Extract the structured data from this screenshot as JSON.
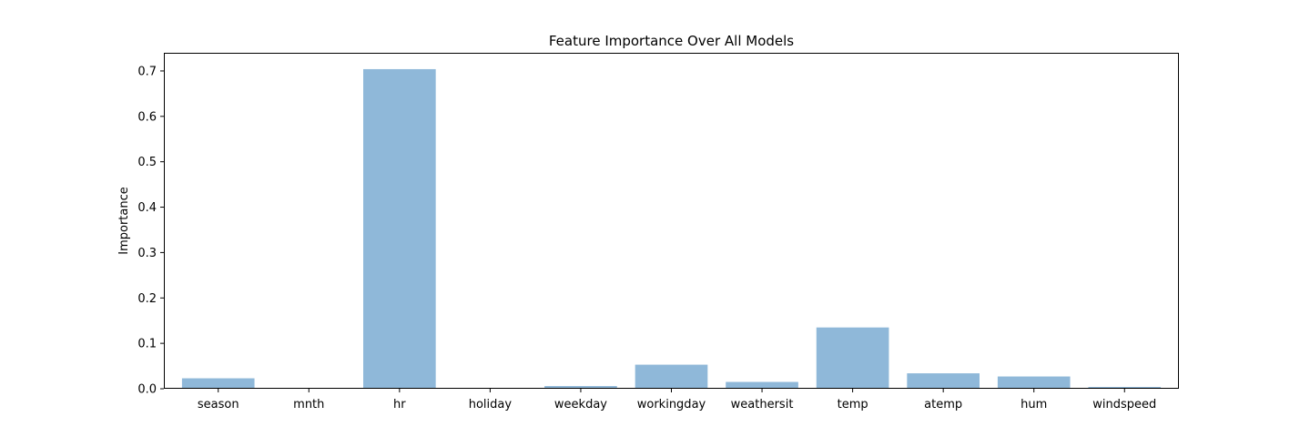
{
  "chart_data": {
    "type": "bar",
    "title": "Feature Importance Over All Models",
    "xlabel": "",
    "ylabel": "Importance",
    "categories": [
      "season",
      "mnth",
      "hr",
      "holiday",
      "weekday",
      "workingday",
      "weathersit",
      "temp",
      "atemp",
      "hum",
      "windspeed"
    ],
    "values": [
      0.023,
      0.002,
      0.704,
      0.0,
      0.006,
      0.053,
      0.015,
      0.135,
      0.034,
      0.027,
      0.004
    ],
    "ylim": [
      0,
      0.74
    ],
    "yticks": [
      0.0,
      0.1,
      0.2,
      0.3,
      0.4,
      0.5,
      0.6,
      0.7
    ],
    "ytick_labels": [
      "0.0",
      "0.1",
      "0.2",
      "0.3",
      "0.4",
      "0.5",
      "0.6",
      "0.7"
    ],
    "bar_color": "#8fb8d9",
    "grid": false,
    "legend": "none"
  }
}
